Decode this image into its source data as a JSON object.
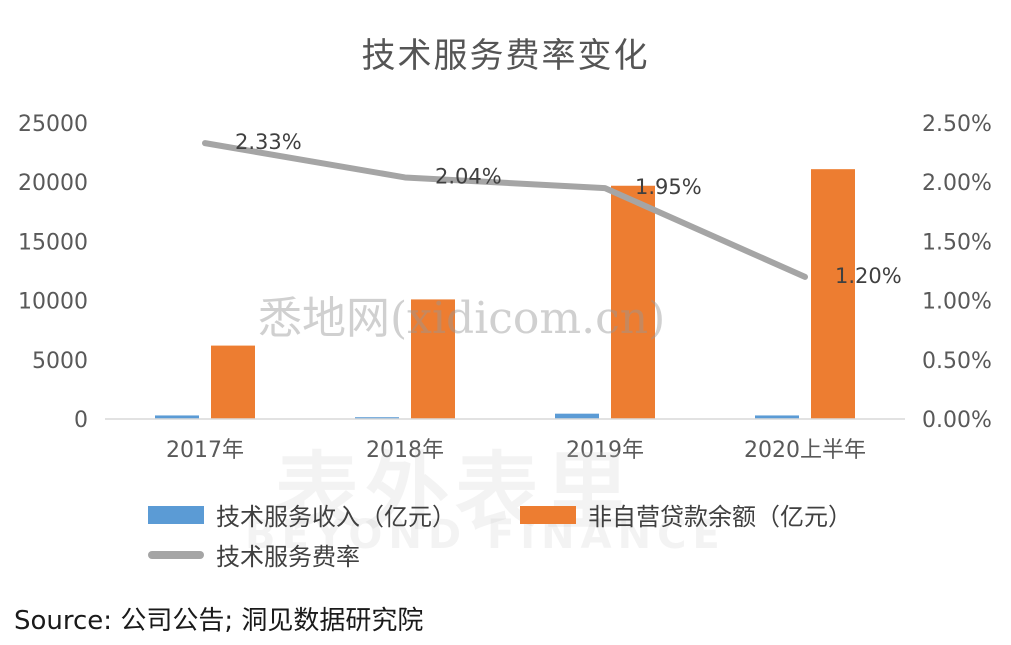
{
  "watermarks": {
    "site": "悉地网(xidicom.cn)",
    "brand_cn": "表外表里",
    "brand_en": "BEYOND FINANCE"
  },
  "source": "Source:  公司公告;  洞见数据研究院",
  "chart_data": {
    "type": "bar",
    "title": "技术服务费率变化",
    "categories": [
      "2017年",
      "2018年",
      "2019年",
      "2020上半年"
    ],
    "series": [
      {
        "name": "技术服务收入（亿元）",
        "type": "bar",
        "axis": "left",
        "color": "#5B9BD5",
        "values": [
          300,
          150,
          450,
          300
        ]
      },
      {
        "name": "非自营贷款余额（亿元）",
        "type": "bar",
        "axis": "left",
        "color": "#ED7D31",
        "values": [
          6200,
          10100,
          19700,
          21100
        ]
      },
      {
        "name": "技术服务费率",
        "type": "line",
        "axis": "right",
        "color": "#A5A5A5",
        "values": [
          2.33,
          2.04,
          1.95,
          1.2
        ],
        "labels": [
          "2.33%",
          "2.04%",
          "1.95%",
          "1.20%"
        ]
      }
    ],
    "y_left": {
      "min": 0,
      "max": 25000,
      "ticks": [
        "0",
        "5000",
        "10000",
        "15000",
        "20000",
        "25000"
      ]
    },
    "y_right": {
      "min": 0,
      "max": 2.5,
      "ticks": [
        "0.00%",
        "0.50%",
        "1.00%",
        "1.50%",
        "2.00%",
        "2.50%"
      ]
    },
    "grid": false,
    "legend_position": "bottom"
  }
}
